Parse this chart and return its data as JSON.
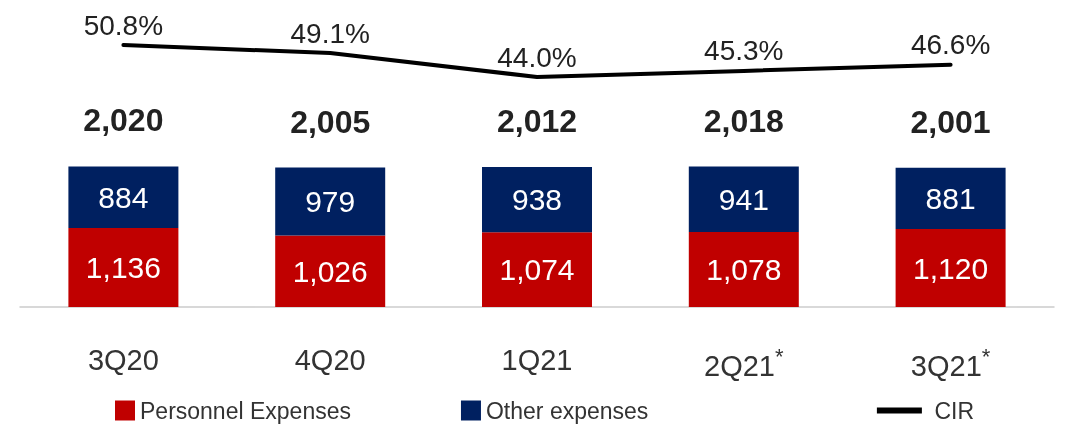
{
  "chart_data": [
    {
      "type": "line",
      "categories": [
        null,
        null,
        null,
        null,
        null
      ],
      "series": [
        {
          "name": "CIR",
          "color": "#000000",
          "values": [
            50.8,
            49.1,
            44.0,
            45.3,
            46.6
          ],
          "value_labels": [
            "50.8%",
            "49.1%",
            "44.0%",
            "45.3%",
            "46.6%"
          ]
        }
      ],
      "legend": "bottom right",
      "grid": false,
      "marker": "none",
      "line_style": "solid"
    },
    {
      "type": "bar",
      "stacked": true,
      "categories": [
        "3Q20",
        "4Q20",
        "1Q21",
        "2Q21$^{*}$",
        "3Q21$^{*}$"
      ],
      "series": [
        {
          "name": "Personnel Expenses",
          "color": "#c00000",
          "values": [
            1136,
            1026,
            1074,
            1078,
            1120
          ],
          "value_labels": [
            "1,136",
            "1,026",
            "1,074",
            "1,078",
            "1,120"
          ]
        },
        {
          "name": "Other expenses",
          "color": "#002060",
          "values": [
            884,
            979,
            938,
            941,
            881
          ],
          "value_labels": [
            "884",
            "979",
            "938",
            "941",
            "881"
          ]
        }
      ],
      "totals": [
        "2,020",
        "2,005",
        "2,012",
        "2,018",
        "2,001"
      ],
      "legend": "bottom left",
      "grid": false
    }
  ]
}
